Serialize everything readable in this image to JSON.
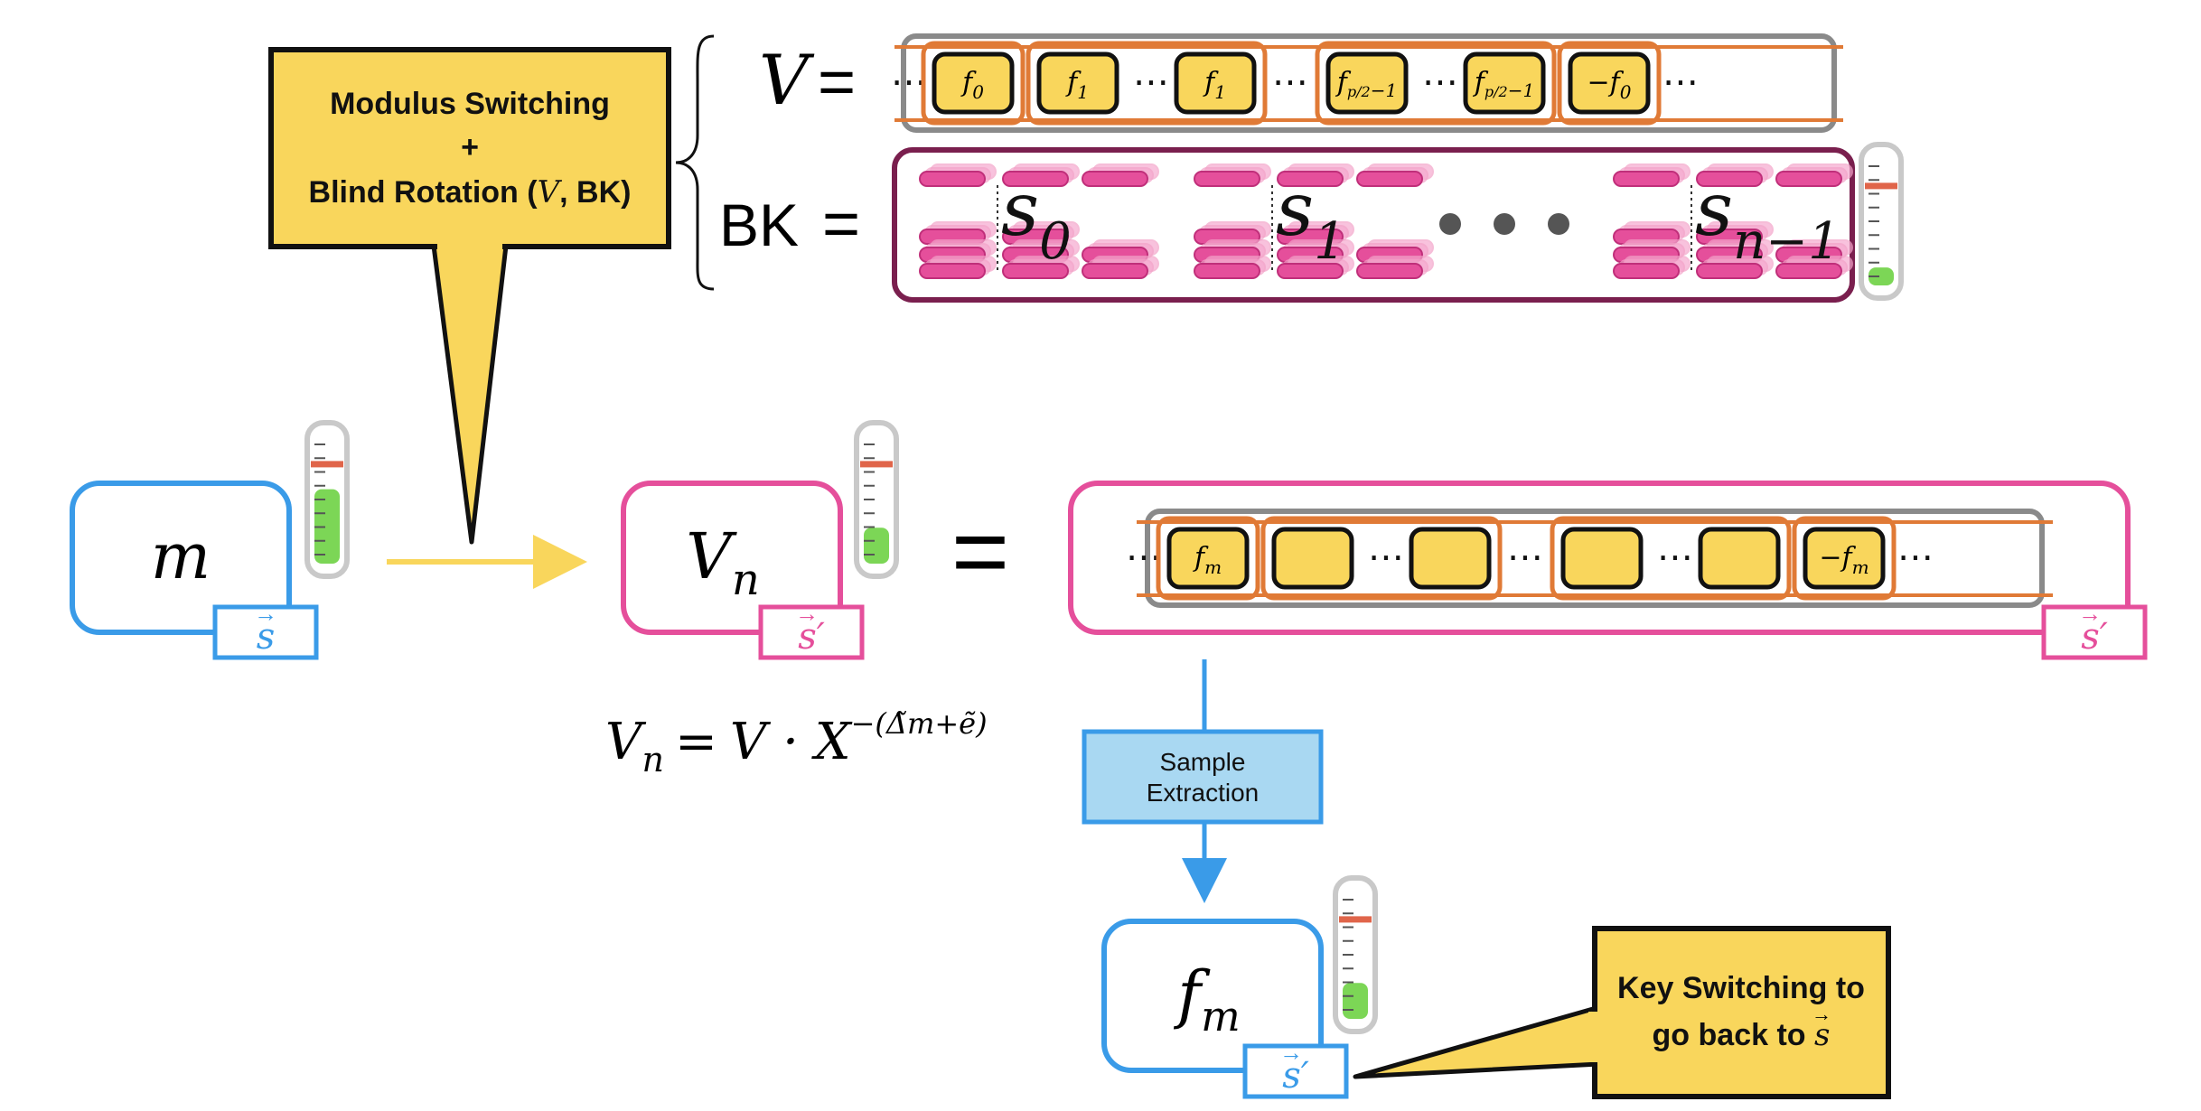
{
  "callout_top": {
    "line1": "Modulus Switching",
    "line2": "+",
    "line3_pre": "Blind Rotation (",
    "line3_v": "V",
    "line3_post": ", BK)"
  },
  "v_row": {
    "label": "V",
    "equals": "=",
    "dots": "⋯",
    "items": [
      "f0",
      "f1",
      "f1",
      "fp/2-1",
      "fp/2-1",
      "-f0"
    ]
  },
  "bk_row": {
    "label": "BK",
    "equals": "=",
    "groups": [
      {
        "base": "s",
        "sub": "0"
      },
      {
        "base": "s",
        "sub": "1"
      },
      {
        "base": "s",
        "sub": "n−1"
      }
    ]
  },
  "ct_m": {
    "var": "m",
    "key": "s"
  },
  "ct_vn": {
    "var": "V",
    "sub": "n",
    "key": "s′"
  },
  "equals_big": "=",
  "right_box": {
    "key": "s′",
    "items": [
      "fm",
      "",
      "",
      "",
      "",
      "-fm"
    ]
  },
  "vn_formula": {
    "lhs_var": "V",
    "lhs_sub": "n",
    "eq": "=",
    "rhs": "V · X",
    "exponent": "−(Δ̃m+ẽ)"
  },
  "sample_extraction": {
    "line1": "Sample",
    "line2": "Extraction"
  },
  "ct_fm": {
    "var": "f",
    "sub": "m",
    "key": "s′"
  },
  "callout_bottom": {
    "line1": "Key Switching to",
    "line2_pre": "go back to ",
    "line2_key": "s"
  },
  "colors": {
    "yellow": "#f9d65c",
    "orange": "#e07a36",
    "blue": "#3a9be8",
    "pink": "#e54f9b",
    "maroon": "#7a1f4e",
    "gray": "#8a8a8a",
    "green": "#7cd656",
    "red": "#e0654a"
  }
}
